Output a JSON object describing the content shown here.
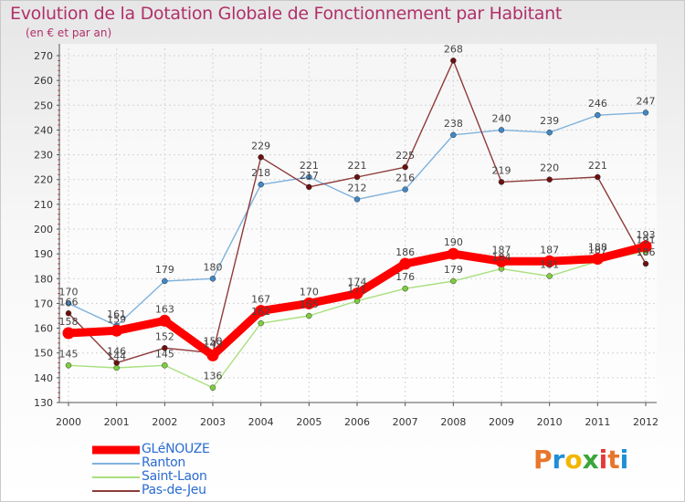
{
  "header": {
    "title": "Evolution de la Dotation Globale de Fonctionnement par Habitant",
    "subtitle": "(en € et par an)"
  },
  "logo": {
    "text": "Proxiti",
    "colors": [
      "#e8762b",
      "#1f8fd6",
      "#f2b600",
      "#3aa63a",
      "#e23b3b"
    ]
  },
  "chart_data": {
    "type": "line",
    "title": "Evolution de la Dotation Globale de Fonctionnement par Habitant",
    "subtitle": "(en € et par an)",
    "xlabel": "",
    "ylabel": "",
    "ylim": [
      130,
      270
    ],
    "yticks": [
      130,
      140,
      150,
      160,
      170,
      180,
      190,
      200,
      210,
      220,
      230,
      240,
      250,
      260,
      270
    ],
    "grid": true,
    "legend_position": "bottom-left",
    "categories": [
      "2000",
      "2001",
      "2002",
      "2003",
      "2004",
      "2005",
      "2006",
      "2007",
      "2008",
      "2009",
      "2010",
      "2011",
      "2012"
    ],
    "series": [
      {
        "name": "GLéNOUZE",
        "color": "#ff0000",
        "marker": "#ff0000",
        "label_color": "#444444",
        "values": [
          158,
          159,
          163,
          149,
          167,
          170,
          174,
          186,
          190,
          187,
          187,
          188,
          193
        ]
      },
      {
        "name": "Ranton",
        "color": "#7fb2dc",
        "marker": "#3f88c8",
        "label_color": "#444444",
        "values": [
          170,
          161,
          179,
          180,
          218,
          221,
          212,
          216,
          238,
          240,
          239,
          246,
          247
        ]
      },
      {
        "name": "Saint-Laon",
        "color": "#a9e07e",
        "marker": "#7dce3c",
        "label_color": "#444444",
        "values": [
          145,
          144,
          145,
          136,
          162,
          165,
          171,
          176,
          179,
          184,
          181,
          187,
          191
        ]
      },
      {
        "name": "Pas-de-Jeu",
        "color": "#8f3b3b",
        "marker": "#6b1010",
        "label_color": "#444444",
        "values": [
          166,
          146,
          152,
          150,
          229,
          217,
          221,
          225,
          268,
          219,
          220,
          221,
          186
        ]
      }
    ]
  }
}
